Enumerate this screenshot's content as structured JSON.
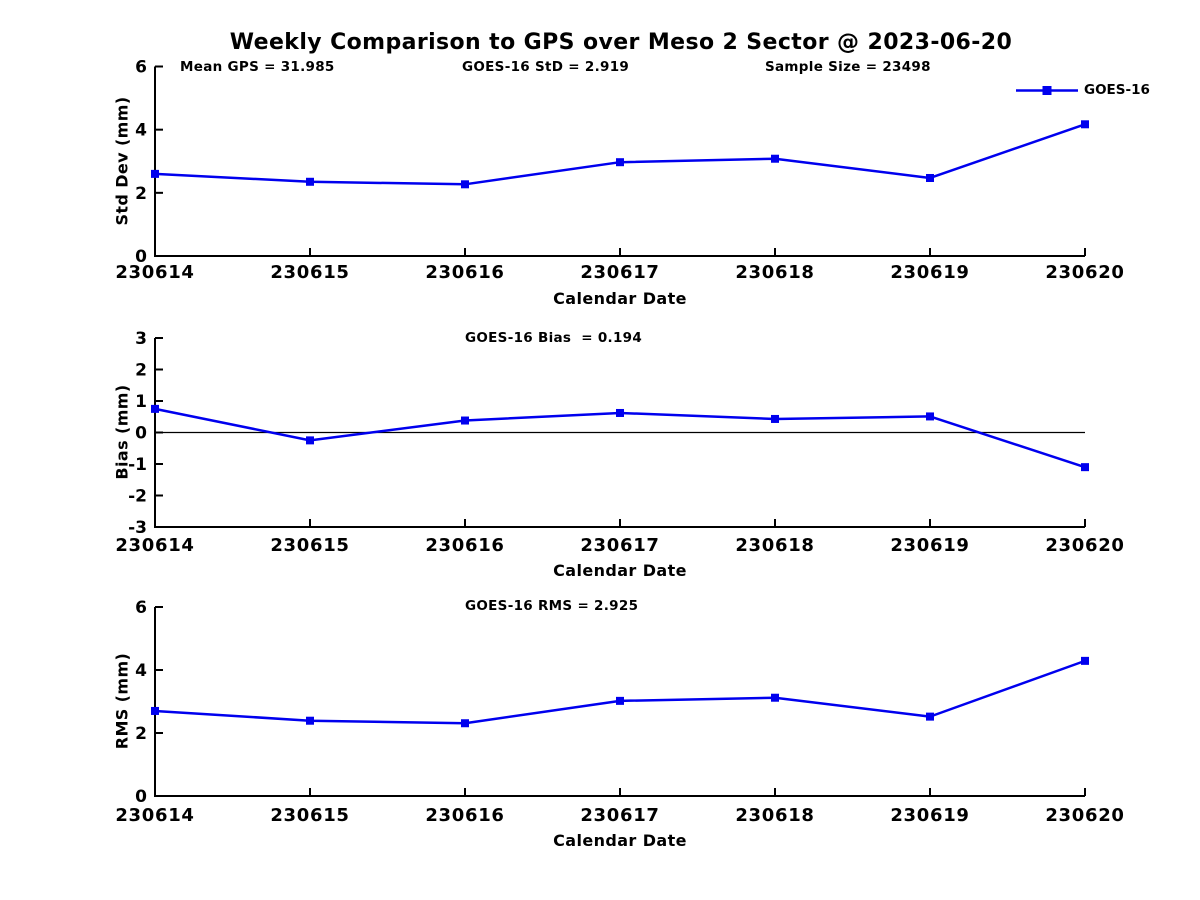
{
  "figure": {
    "title": "Weekly Comparison to GPS over Meso 2 Sector @ 2023-06-20",
    "background_color": "#ffffff",
    "text_color": "#000000",
    "accent_color": "#0000ee"
  },
  "legend": {
    "label": "GOES-16",
    "color": "#0000ee",
    "marker": "square",
    "position": "top-right"
  },
  "chart_data": [
    {
      "type": "line",
      "name": "std-dev-subplot",
      "annotations": [
        "Mean GPS = 31.985",
        "GOES-16 StD = 2.919",
        "Sample Size = 23498"
      ],
      "categories": [
        "230614",
        "230615",
        "230616",
        "230617",
        "230618",
        "230619",
        "230620"
      ],
      "series": [
        {
          "name": "GOES-16",
          "color": "#0000ee",
          "marker": "square",
          "values": [
            2.6,
            2.35,
            2.27,
            2.97,
            3.08,
            2.47,
            4.17
          ]
        }
      ],
      "xlabel": "Calendar Date",
      "ylabel": "Std Dev (mm)",
      "ylim": [
        0,
        6
      ],
      "yticks": [
        0,
        2,
        4,
        6
      ],
      "zero_line": false,
      "grid": false
    },
    {
      "type": "line",
      "name": "bias-subplot",
      "annotations": [
        "GOES-16 Bias  = 0.194"
      ],
      "categories": [
        "230614",
        "230615",
        "230616",
        "230617",
        "230618",
        "230619",
        "230620"
      ],
      "series": [
        {
          "name": "GOES-16",
          "color": "#0000ee",
          "marker": "square",
          "values": [
            0.75,
            -0.25,
            0.38,
            0.62,
            0.43,
            0.51,
            -1.1
          ]
        }
      ],
      "xlabel": "Calendar Date",
      "ylabel": "Bias (mm)",
      "ylim": [
        -3,
        3
      ],
      "yticks": [
        3,
        2,
        1,
        0,
        -1,
        -2,
        -3
      ],
      "zero_line": true,
      "grid": false
    },
    {
      "type": "line",
      "name": "rms-subplot",
      "annotations": [
        "GOES-16 RMS = 2.925"
      ],
      "categories": [
        "230614",
        "230615",
        "230616",
        "230617",
        "230618",
        "230619",
        "230620"
      ],
      "series": [
        {
          "name": "GOES-16",
          "color": "#0000ee",
          "marker": "square",
          "values": [
            2.7,
            2.39,
            2.31,
            3.02,
            3.12,
            2.52,
            4.29
          ]
        }
      ],
      "xlabel": "Calendar Date",
      "ylabel": "RMS (mm)",
      "ylim": [
        0,
        6
      ],
      "yticks": [
        0,
        2,
        4,
        6
      ],
      "zero_line": false,
      "grid": false
    }
  ]
}
